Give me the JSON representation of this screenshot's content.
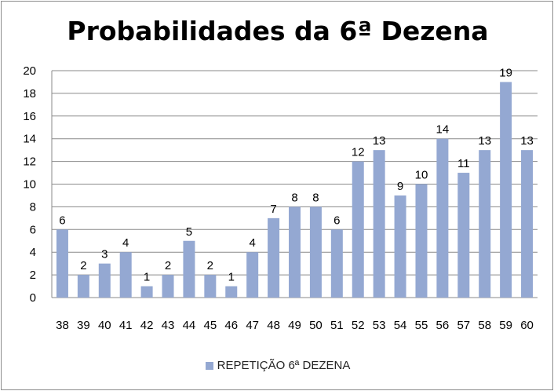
{
  "chart_data": {
    "type": "bar",
    "title": "Probabilidades da 6ª Dezena",
    "categories": [
      "38",
      "39",
      "40",
      "41",
      "42",
      "43",
      "44",
      "45",
      "46",
      "47",
      "48",
      "49",
      "50",
      "51",
      "52",
      "53",
      "54",
      "55",
      "56",
      "57",
      "58",
      "59",
      "60"
    ],
    "series": [
      {
        "name": "REPETIÇÃO 6ª DEZENA",
        "values": [
          6,
          2,
          3,
          4,
          1,
          2,
          5,
          2,
          1,
          4,
          7,
          8,
          8,
          6,
          12,
          13,
          9,
          10,
          14,
          11,
          13,
          19,
          13
        ],
        "color": "#94a8d2"
      }
    ],
    "ylim": [
      0,
      20
    ],
    "yticks": [
      0,
      2,
      4,
      6,
      8,
      10,
      12,
      14,
      16,
      18,
      20
    ],
    "grid": true,
    "data_labels": true,
    "legend_position": "bottom"
  }
}
